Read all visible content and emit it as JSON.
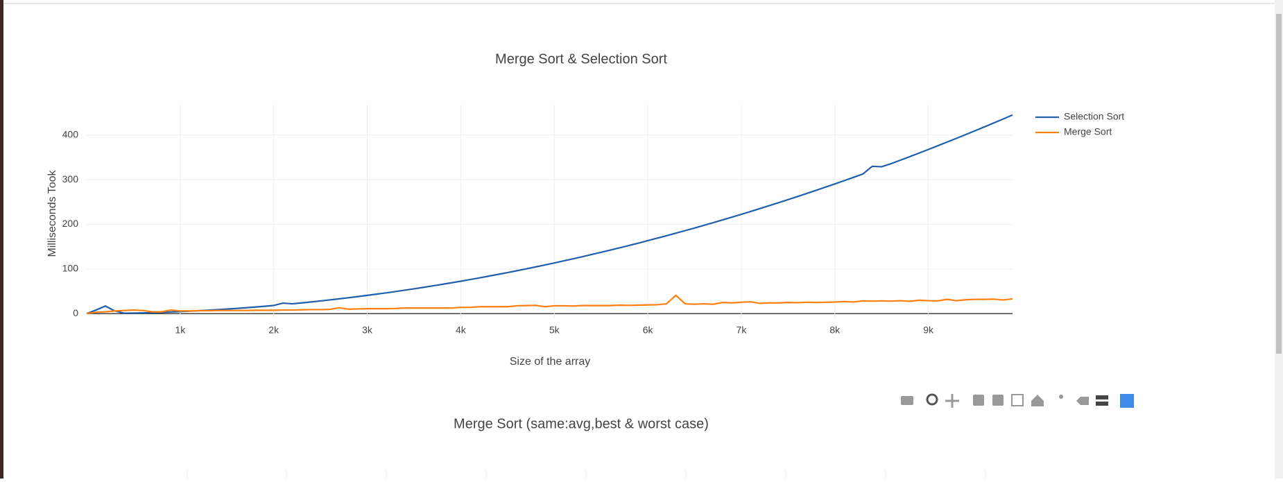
{
  "chart_data": [
    {
      "type": "line",
      "title": "Merge Sort & Selection Sort",
      "x_label": "Size of the array",
      "y_label": "Milliseconds Took",
      "x": [
        0,
        100,
        200,
        300,
        400,
        500,
        600,
        700,
        800,
        900,
        1000,
        1100,
        1200,
        1300,
        1400,
        1500,
        1600,
        1700,
        1800,
        1900,
        2000,
        2100,
        2200,
        2300,
        2400,
        2500,
        2600,
        2700,
        2800,
        2900,
        3000,
        3100,
        3200,
        3300,
        3400,
        3500,
        3600,
        3700,
        3800,
        3900,
        4000,
        4100,
        4200,
        4300,
        4400,
        4500,
        4600,
        4700,
        4800,
        4900,
        5000,
        5100,
        5200,
        5300,
        5400,
        5500,
        5600,
        5700,
        5800,
        5900,
        6000,
        6100,
        6200,
        6300,
        6400,
        6500,
        6600,
        6700,
        6800,
        6900,
        7000,
        7100,
        7200,
        7300,
        7400,
        7500,
        7600,
        7700,
        7800,
        7900,
        8000,
        8100,
        8200,
        8300,
        8400,
        8500,
        8600,
        8700,
        8800,
        8900,
        9000,
        9100,
        9200,
        9300,
        9400,
        9500,
        9600,
        9700,
        9800,
        9900
      ],
      "series": [
        {
          "name": "Selection Sort",
          "color": "#1f5fad",
          "values": [
            0,
            8,
            17,
            6,
            1,
            1.1,
            1.6,
            2.2,
            2.9,
            3.7,
            4.5,
            5.5,
            6.5,
            7.7,
            8.9,
            10.2,
            11.6,
            13.1,
            14.7,
            16.4,
            18.2,
            23.5,
            22,
            24,
            26.2,
            28.4,
            30.7,
            33.1,
            35.6,
            38.2,
            40.9,
            43.6,
            46.5,
            49.4,
            52.5,
            55.6,
            58.8,
            62.2,
            65.6,
            69.1,
            72.6,
            76.3,
            80,
            84,
            87.9,
            91.9,
            96.1,
            100.3,
            104.6,
            109,
            113.5,
            118.1,
            122.8,
            127.5,
            132.4,
            137.3,
            142.4,
            147.5,
            152.7,
            158,
            163.5,
            169,
            174.5,
            180.2,
            186,
            191.8,
            197.8,
            203.8,
            209.9,
            216.2,
            222.5,
            228.9,
            235.4,
            242,
            248.6,
            255.4,
            262.2,
            269.2,
            276.2,
            283.4,
            290.6,
            297.9,
            305.3,
            312.8,
            330,
            329,
            335.8,
            343.7,
            351.6,
            359.6,
            367.8,
            376,
            384.3,
            392.7,
            401.2,
            409.8,
            418.4,
            427.2,
            436,
            445
          ]
        },
        {
          "name": "Merge Sort",
          "color": "#ff7f0e",
          "values": [
            0,
            3,
            4,
            6,
            7,
            8,
            7,
            4,
            4,
            8,
            6,
            6,
            6.5,
            6.5,
            7,
            7,
            7,
            7,
            7.5,
            7.5,
            7.5,
            8,
            8,
            8.5,
            9,
            9,
            9.5,
            13,
            10,
            10.5,
            11,
            11,
            11,
            11.5,
            12.5,
            12.5,
            12.5,
            12.5,
            12.5,
            12.5,
            14,
            14,
            15.5,
            15.5,
            15.5,
            15.5,
            17.5,
            18,
            18.5,
            15.5,
            17.5,
            17.5,
            17,
            18,
            18,
            18,
            18,
            19,
            18.5,
            19,
            19.5,
            20,
            22,
            41,
            22,
            21,
            22,
            21,
            25,
            24,
            25.5,
            26.5,
            23,
            24,
            24,
            25,
            24.5,
            25.5,
            25,
            25.5,
            26,
            27,
            26,
            28.5,
            28,
            28.5,
            28,
            29,
            27.5,
            30,
            29,
            28.5,
            32,
            29,
            31,
            32,
            32,
            32.5,
            30.5,
            33
          ]
        }
      ],
      "xlim": [
        0,
        9900
      ],
      "ylim": [
        -9,
        468
      ],
      "xticks": [
        {
          "value": 1000,
          "label": "1k"
        },
        {
          "value": 2000,
          "label": "2k"
        },
        {
          "value": 3000,
          "label": "3k"
        },
        {
          "value": 4000,
          "label": "4k"
        },
        {
          "value": 5000,
          "label": "5k"
        },
        {
          "value": 6000,
          "label": "6k"
        },
        {
          "value": 7000,
          "label": "7k"
        },
        {
          "value": 8000,
          "label": "8k"
        },
        {
          "value": 9000,
          "label": "9k"
        }
      ],
      "yticks": [
        0,
        100,
        200,
        300,
        400
      ],
      "grid": true,
      "legend": "right"
    },
    {
      "type": "line",
      "title": "Merge Sort (same:avg,best & worst case)"
    }
  ]
}
